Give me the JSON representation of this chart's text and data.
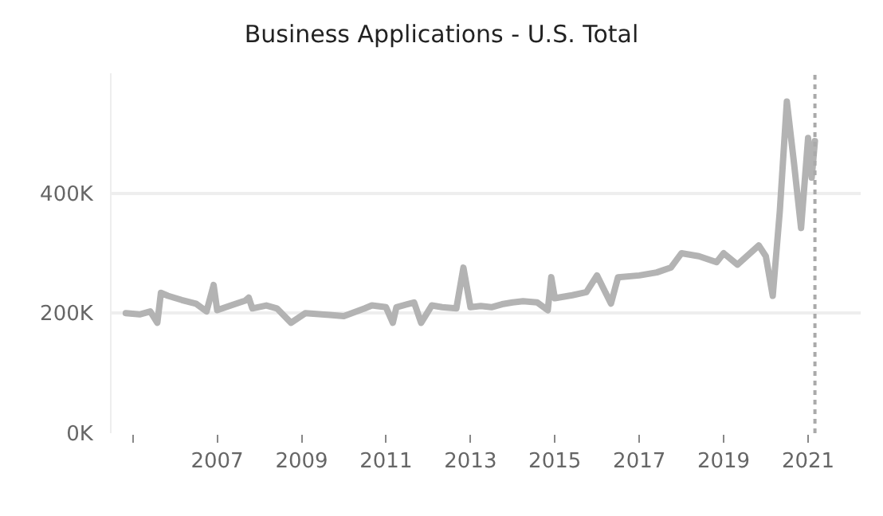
{
  "chart_data": {
    "type": "line",
    "title": "Business Applications - U.S. Total",
    "x": [
      "2004-11",
      "2005-03",
      "2005-06",
      "2005-08",
      "2005-09",
      "2005-11",
      "2006-03",
      "2006-07",
      "2006-10",
      "2006-12",
      "2007-01",
      "2007-05",
      "2007-09",
      "2007-10",
      "2007-11",
      "2008-03",
      "2008-06",
      "2008-10",
      "2009-02",
      "2009-09",
      "2010-01",
      "2010-07",
      "2010-09",
      "2011-01",
      "2011-03",
      "2011-04",
      "2011-09",
      "2011-11",
      "2012-02",
      "2012-05",
      "2012-09",
      "2012-11",
      "2013-01",
      "2013-04",
      "2013-07",
      "2013-10",
      "2014-01",
      "2014-04",
      "2014-08",
      "2014-11",
      "2014-12",
      "2015-01",
      "2015-06",
      "2015-10",
      "2016-01",
      "2016-05",
      "2016-07",
      "2017-01",
      "2017-06",
      "2017-10",
      "2018-01",
      "2018-06",
      "2018-11",
      "2019-01",
      "2019-05",
      "2019-11",
      "2020-01",
      "2020-03",
      "2020-05",
      "2020-07",
      "2020-09",
      "2020-11",
      "2021-01",
      "2021-02",
      "2021-03"
    ],
    "series": [
      {
        "color": "#b3b3b3",
        "values": [
          200000,
          198000,
          203000,
          184000,
          234000,
          229000,
          222000,
          216000,
          203000,
          247000,
          205000,
          213000,
          221000,
          226000,
          208000,
          213000,
          208000,
          184000,
          200000,
          197000,
          195000,
          208000,
          213000,
          210000,
          184000,
          210000,
          218000,
          184000,
          213000,
          210000,
          208000,
          276000,
          210000,
          212000,
          210000,
          215000,
          218000,
          220000,
          218000,
          205000,
          260000,
          225000,
          230000,
          235000,
          263000,
          216000,
          260000,
          263000,
          268000,
          276000,
          300000,
          295000,
          285000,
          300000,
          281000,
          313000,
          295000,
          229000,
          370000,
          553000,
          450000,
          342000,
          492000,
          426000,
          487000
        ]
      }
    ],
    "xlim": [
      "2004-07",
      "2022-04"
    ],
    "xticks": [
      {
        "value": "2005",
        "label": null
      },
      "2007",
      "2009",
      "2011",
      "2013",
      "2015",
      "2017",
      "2019",
      "2021"
    ],
    "ylim": [
      0,
      600000
    ],
    "yticks": [
      {
        "value": 0,
        "label": "0K"
      },
      {
        "value": 200000,
        "label": "200K"
      },
      {
        "value": 400000,
        "label": "400K"
      }
    ],
    "ref_lines": [
      {
        "axis": "x",
        "value": "2021-03",
        "label": null,
        "color": "#aaaaaa",
        "line_style": "dotted"
      }
    ],
    "grid": "y",
    "marker": "none",
    "line_style": "solid"
  }
}
